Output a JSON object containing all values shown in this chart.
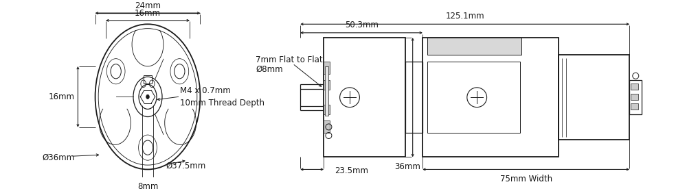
{
  "bg_color": "#ffffff",
  "line_color": "#1a1a1a",
  "figsize": [
    10.0,
    2.79
  ],
  "dpi": 100,
  "annotations": {
    "dim_24mm": "24mm",
    "dim_16mm_h": "16mm",
    "dim_16mm_v": "16mm",
    "dim_36": "Ø36mm",
    "dim_375": "Ø37.5mm",
    "dim_8mm": "8mm",
    "dim_m4": "M4 x 0.7mm",
    "dim_thread": "10mm Thread Depth",
    "dim_7mm": "7mm Flat to Flat",
    "dim_8d": "Ø8mm",
    "dim_1251": "125.1mm",
    "dim_503": "50.3mm",
    "dim_235": "23.5mm",
    "dim_36mm": "36mm",
    "dim_75": "75mm Width"
  }
}
